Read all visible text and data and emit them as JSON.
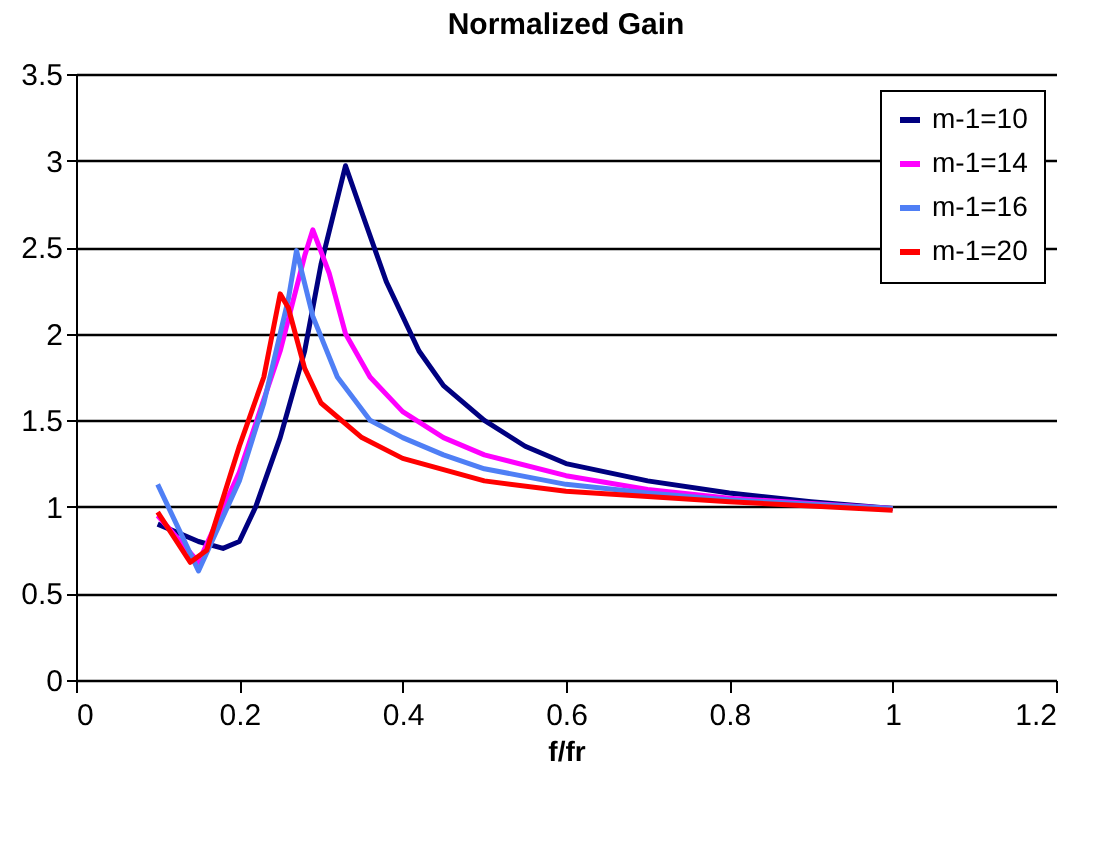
{
  "chart_data": {
    "type": "line",
    "title": "Normalized Gain",
    "xlabel": "f/fr",
    "xlim": [
      0,
      1.2
    ],
    "xticks": [
      0,
      0.2,
      0.4,
      0.6,
      0.8,
      1,
      1.2
    ],
    "ylim": [
      0,
      3.5
    ],
    "yticks": [
      0,
      0.5,
      1,
      1.5,
      2,
      2.5,
      3,
      3.5
    ],
    "grid": "y",
    "legend": "top right",
    "marker": "none",
    "line_style": "solid",
    "series": [
      {
        "name": "m-1=10",
        "color": "#000080",
        "x": [
          0.1,
          0.15,
          0.18,
          0.2,
          0.22,
          0.25,
          0.28,
          0.3,
          0.33,
          0.35,
          0.38,
          0.42,
          0.45,
          0.5,
          0.55,
          0.6,
          0.7,
          0.8,
          0.9,
          1.0
        ],
        "values": [
          0.9,
          0.8,
          0.76,
          0.8,
          1.0,
          1.4,
          1.9,
          2.4,
          2.97,
          2.7,
          2.3,
          1.9,
          1.7,
          1.5,
          1.35,
          1.25,
          1.15,
          1.08,
          1.03,
          0.99
        ]
      },
      {
        "name": "m-1=14",
        "color": "#ff00ff",
        "x": [
          0.1,
          0.15,
          0.2,
          0.25,
          0.28,
          0.29,
          0.31,
          0.33,
          0.36,
          0.4,
          0.45,
          0.5,
          0.6,
          0.7,
          0.8,
          0.9,
          1.0
        ],
        "values": [
          0.95,
          0.68,
          1.2,
          1.9,
          2.45,
          2.6,
          2.35,
          2.0,
          1.75,
          1.55,
          1.4,
          1.3,
          1.18,
          1.1,
          1.05,
          1.02,
          0.99
        ]
      },
      {
        "name": "m-1=16",
        "color": "#4f7ff5",
        "x": [
          0.1,
          0.15,
          0.2,
          0.23,
          0.26,
          0.27,
          0.29,
          0.32,
          0.36,
          0.4,
          0.45,
          0.5,
          0.6,
          0.7,
          0.8,
          1.0
        ],
        "values": [
          1.13,
          0.63,
          1.15,
          1.6,
          2.2,
          2.48,
          2.1,
          1.75,
          1.5,
          1.4,
          1.3,
          1.22,
          1.13,
          1.08,
          1.04,
          0.99
        ]
      },
      {
        "name": "m-1=20",
        "color": "#ff0000",
        "x": [
          0.1,
          0.14,
          0.16,
          0.2,
          0.23,
          0.25,
          0.26,
          0.28,
          0.3,
          0.35,
          0.4,
          0.5,
          0.6,
          0.7,
          0.8,
          1.0
        ],
        "values": [
          0.97,
          0.68,
          0.75,
          1.35,
          1.75,
          2.23,
          2.15,
          1.8,
          1.6,
          1.4,
          1.28,
          1.15,
          1.09,
          1.06,
          1.03,
          0.98
        ]
      }
    ]
  }
}
